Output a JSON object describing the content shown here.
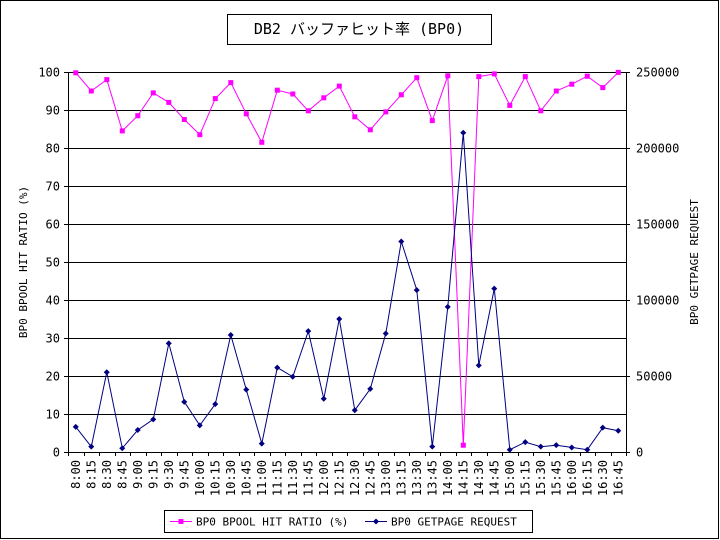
{
  "chart_data": {
    "type": "line",
    "title": "DB2 バッファヒット率 (BP0)",
    "categories": [
      "8:00",
      "8:15",
      "8:30",
      "8:45",
      "9:00",
      "9:15",
      "9:30",
      "9:45",
      "10:00",
      "10:15",
      "10:30",
      "10:45",
      "11:00",
      "11:15",
      "11:30",
      "11:45",
      "12:00",
      "12:15",
      "12:30",
      "12:45",
      "13:00",
      "13:15",
      "13:30",
      "13:45",
      "14:00",
      "14:15",
      "14:30",
      "14:45",
      "15:00",
      "15:15",
      "15:30",
      "15:45",
      "16:00",
      "16:15",
      "16:30",
      "16:45"
    ],
    "ylabel_left": "BP0 BPOOL HIT RATIO (%)",
    "ylabel_right": "BP0 GETPAGE REQUEST",
    "ylim_left": [
      0,
      100
    ],
    "yticks_left": [
      "0",
      "10",
      "20",
      "30",
      "40",
      "50",
      "60",
      "70",
      "80",
      "90",
      "100"
    ],
    "ylim_right": [
      0,
      250000
    ],
    "yticks_right": [
      "0",
      "50000",
      "100000",
      "150000",
      "200000",
      "250000"
    ],
    "grid": true,
    "legend_position": "bottom",
    "series": [
      {
        "name": "BP0 BPOOL HIT RATIO (%)",
        "axis": "left",
        "color": "#ff00ff",
        "marker": "square",
        "values": [
          99.8,
          95,
          98,
          84.5,
          88.5,
          94.5,
          92,
          87.5,
          83.5,
          93,
          97.2,
          89,
          81.5,
          95.2,
          94.2,
          89.8,
          93.2,
          96.3,
          88.2,
          84.8,
          89.5,
          94,
          98.5,
          87.2,
          99,
          1.8,
          98.8,
          99.5,
          91.2,
          98.8,
          89.8,
          95,
          96.8,
          98.9,
          95.9,
          99.9
        ]
      },
      {
        "name": "BP0 GETPAGE REQUEST",
        "axis": "right",
        "color": "#000080",
        "marker": "diamond",
        "values": [
          16500,
          3500,
          52500,
          2500,
          14500,
          21500,
          71500,
          33000,
          17500,
          31500,
          77000,
          41000,
          5500,
          55500,
          49500,
          79500,
          35000,
          87500,
          27500,
          41500,
          78000,
          138500,
          106500,
          3500,
          95500,
          210000,
          57000,
          107500,
          1500,
          6500,
          3500,
          4500,
          3000,
          1500,
          16000,
          14000
        ]
      }
    ]
  }
}
